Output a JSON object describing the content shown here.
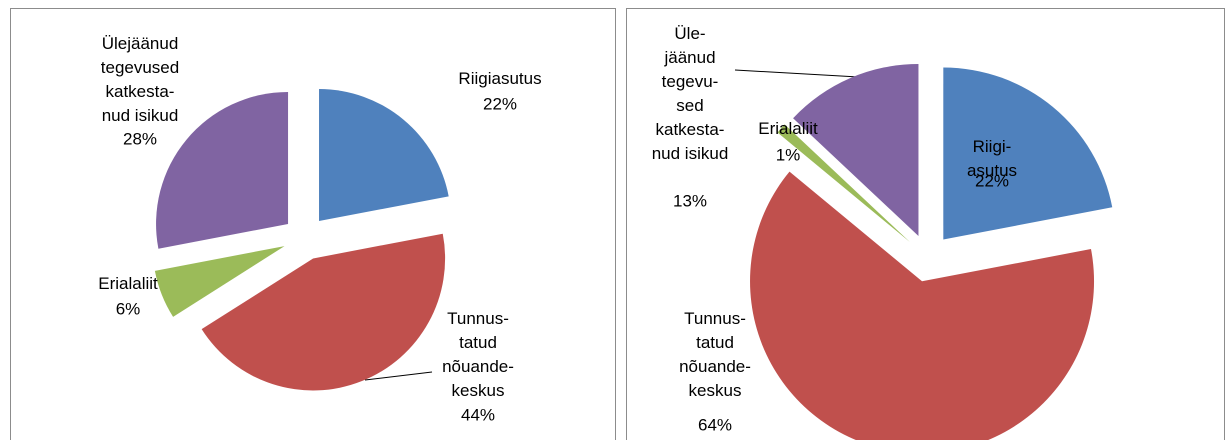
{
  "chart_data": [
    {
      "type": "pie",
      "categories": [
        "Riigiasutus",
        "Tunnus-\ntatud\nnõuande-\nkeskus",
        "Erialaliit",
        "Ülejäänud\ntegevused\nkatkesta-\nnud isikud"
      ],
      "values": [
        22,
        44,
        6,
        28
      ],
      "value_labels": [
        "22%",
        "44%",
        "6%",
        "28%"
      ],
      "colors": [
        "#4f81bd",
        "#c0504d",
        "#9bbb59",
        "#8064a2"
      ]
    },
    {
      "type": "pie",
      "categories": [
        "Riigi-\nasutus",
        "Tunnus-\ntatud\nnõuande-\nkeskus",
        "Erialaliit",
        "Üle-\njäänud\ntegevu-\nsed\nkatkesta-\nnud isikud"
      ],
      "values": [
        22,
        64,
        1,
        13
      ],
      "value_labels": [
        "22%",
        "64%",
        "1%",
        "13%"
      ],
      "colors": [
        "#4f81bd",
        "#c0504d",
        "#9bbb59",
        "#8064a2"
      ]
    }
  ]
}
